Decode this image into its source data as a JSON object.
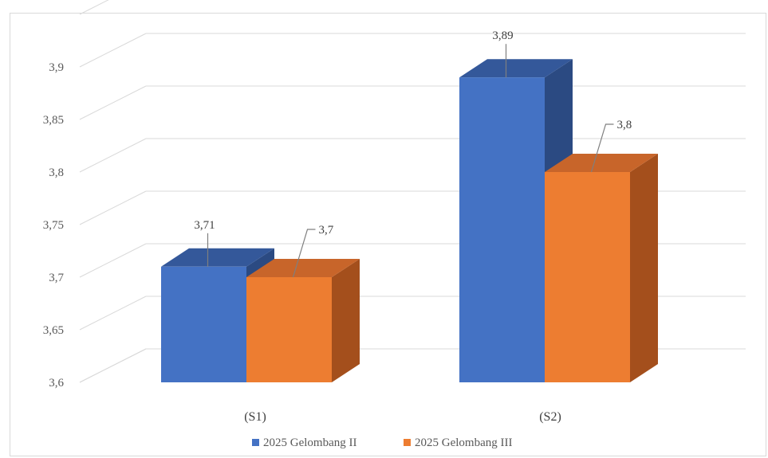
{
  "chart_data": {
    "type": "bar",
    "categories": [
      "(S1)",
      "(S2)"
    ],
    "series": [
      {
        "name": "2025 Gelombang II",
        "values": [
          3.71,
          3.89
        ],
        "color": "#4472C4",
        "side": "#2B4A82",
        "top": "#34589A"
      },
      {
        "name": "2025 Gelombang III",
        "values": [
          3.7,
          3.8
        ],
        "color": "#ED7D31",
        "side": "#A44F1C",
        "top": "#C8652A"
      }
    ],
    "value_labels": [
      [
        "3,71",
        "3,89"
      ],
      [
        "3,7",
        "3,8"
      ]
    ],
    "yticks": [
      "3,6",
      "3,65",
      "3,7",
      "3,75",
      "3,8",
      "3,85",
      "3,9"
    ],
    "ylim": [
      3.6,
      3.95
    ],
    "grid": true,
    "legend": "bottom",
    "title": ""
  }
}
